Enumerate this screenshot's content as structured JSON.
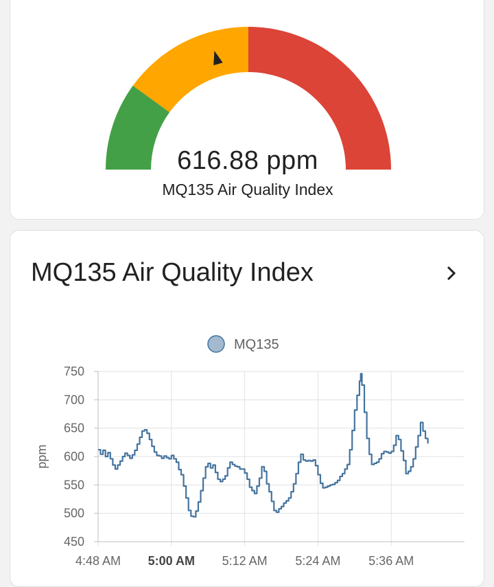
{
  "gauge": {
    "value": 616.88,
    "value_text": "616.88 ppm",
    "name": "MQ135 Air Quality Index",
    "min": 0,
    "max": 1500,
    "segments": [
      {
        "from": 0,
        "to": 300,
        "color": "#43a047"
      },
      {
        "from": 300,
        "to": 750,
        "color": "#ffa600"
      },
      {
        "from": 750,
        "to": 1500,
        "color": "#db4437"
      }
    ],
    "needle_color": "#212121"
  },
  "history_card": {
    "title": "MQ135 Air Quality Index",
    "more_icon": "chevron-right-icon"
  },
  "chart_data": {
    "type": "line",
    "legend": [
      "MQ135"
    ],
    "series": [
      {
        "name": "MQ135",
        "color": "#44739e",
        "legend_color": "#a3b9cf",
        "points": [
          [
            0,
            612
          ],
          [
            0.4,
            604
          ],
          [
            0.8,
            611
          ],
          [
            1.2,
            600
          ],
          [
            1.6,
            607
          ],
          [
            2,
            596
          ],
          [
            2.4,
            585
          ],
          [
            2.8,
            578
          ],
          [
            3.2,
            585
          ],
          [
            3.6,
            592
          ],
          [
            4,
            600
          ],
          [
            4.4,
            606
          ],
          [
            4.8,
            602
          ],
          [
            5.2,
            597
          ],
          [
            5.6,
            603
          ],
          [
            6,
            611
          ],
          [
            6.4,
            622
          ],
          [
            6.8,
            634
          ],
          [
            7.2,
            645
          ],
          [
            7.6,
            647
          ],
          [
            8,
            641
          ],
          [
            8.4,
            630
          ],
          [
            8.8,
            618
          ],
          [
            9.2,
            608
          ],
          [
            9.6,
            602
          ],
          [
            10,
            601
          ],
          [
            10.4,
            597
          ],
          [
            10.8,
            601
          ],
          [
            11.2,
            598
          ],
          [
            11.6,
            596
          ],
          [
            12,
            602
          ],
          [
            12.4,
            596
          ],
          [
            12.8,
            590
          ],
          [
            13.2,
            577
          ],
          [
            13.6,
            568
          ],
          [
            14,
            548
          ],
          [
            14.4,
            527
          ],
          [
            14.8,
            505
          ],
          [
            15.2,
            495
          ],
          [
            15.6,
            494
          ],
          [
            16,
            504
          ],
          [
            16.4,
            520
          ],
          [
            16.8,
            540
          ],
          [
            17.2,
            562
          ],
          [
            17.6,
            582
          ],
          [
            18,
            588
          ],
          [
            18.4,
            580
          ],
          [
            18.8,
            585
          ],
          [
            19.2,
            572
          ],
          [
            19.6,
            560
          ],
          [
            20,
            556
          ],
          [
            20.4,
            560
          ],
          [
            20.8,
            566
          ],
          [
            21.2,
            580
          ],
          [
            21.6,
            590
          ],
          [
            22,
            586
          ],
          [
            22.4,
            583
          ],
          [
            22.8,
            582
          ],
          [
            23.2,
            578
          ],
          [
            23.6,
            578
          ],
          [
            24,
            571
          ],
          [
            24.4,
            560
          ],
          [
            24.8,
            546
          ],
          [
            25.2,
            540
          ],
          [
            25.6,
            535
          ],
          [
            26,
            548
          ],
          [
            26.4,
            562
          ],
          [
            26.8,
            582
          ],
          [
            27.2,
            574
          ],
          [
            27.6,
            552
          ],
          [
            28,
            538
          ],
          [
            28.4,
            521
          ],
          [
            28.8,
            505
          ],
          [
            29.2,
            502
          ],
          [
            29.6,
            508
          ],
          [
            30,
            512
          ],
          [
            30.4,
            518
          ],
          [
            30.8,
            522
          ],
          [
            31.2,
            527
          ],
          [
            31.6,
            538
          ],
          [
            32,
            552
          ],
          [
            32.4,
            570
          ],
          [
            32.8,
            590
          ],
          [
            33.2,
            604
          ],
          [
            33.6,
            594
          ],
          [
            34,
            592
          ],
          [
            34.4,
            593
          ],
          [
            34.8,
            592
          ],
          [
            35.2,
            594
          ],
          [
            35.6,
            584
          ],
          [
            36,
            568
          ],
          [
            36.4,
            553
          ],
          [
            36.8,
            545
          ],
          [
            37.2,
            546
          ],
          [
            37.6,
            548
          ],
          [
            38,
            550
          ],
          [
            38.4,
            551
          ],
          [
            38.8,
            554
          ],
          [
            39.2,
            558
          ],
          [
            39.6,
            565
          ],
          [
            40,
            570
          ],
          [
            40.4,
            578
          ],
          [
            40.8,
            586
          ],
          [
            41.2,
            612
          ],
          [
            41.6,
            646
          ],
          [
            42,
            682
          ],
          [
            42.4,
            708
          ],
          [
            42.8,
            733
          ],
          [
            43,
            746
          ],
          [
            43.2,
            726
          ],
          [
            43.6,
            678
          ],
          [
            44,
            632
          ],
          [
            44.4,
            604
          ],
          [
            44.8,
            586
          ],
          [
            45.2,
            588
          ],
          [
            45.6,
            590
          ],
          [
            46,
            596
          ],
          [
            46.4,
            605
          ],
          [
            46.8,
            609
          ],
          [
            47.2,
            608
          ],
          [
            47.6,
            606
          ],
          [
            48,
            609
          ],
          [
            48.4,
            620
          ],
          [
            48.8,
            637
          ],
          [
            49.2,
            630
          ],
          [
            49.6,
            610
          ],
          [
            50,
            593
          ],
          [
            50.4,
            570
          ],
          [
            50.8,
            574
          ],
          [
            51.2,
            582
          ],
          [
            51.6,
            596
          ],
          [
            52,
            617
          ],
          [
            52.4,
            637
          ],
          [
            52.8,
            660
          ],
          [
            53.2,
            645
          ],
          [
            53.6,
            632
          ],
          [
            54,
            623
          ]
        ]
      }
    ],
    "x_ticks": [
      {
        "label": "4:48 AM",
        "value": 0,
        "bold": false
      },
      {
        "label": "5:00 AM",
        "value": 12,
        "bold": true
      },
      {
        "label": "5:12 AM",
        "value": 24,
        "bold": false
      },
      {
        "label": "5:24 AM",
        "value": 36,
        "bold": false
      },
      {
        "label": "5:36 AM",
        "value": 48,
        "bold": false
      }
    ],
    "y_ticks": [
      450,
      500,
      550,
      600,
      650,
      700,
      750
    ],
    "ylim": [
      450,
      750
    ],
    "xlim": [
      0,
      60
    ],
    "ylabel": "ppm",
    "grid": true,
    "legend_position": "top"
  }
}
